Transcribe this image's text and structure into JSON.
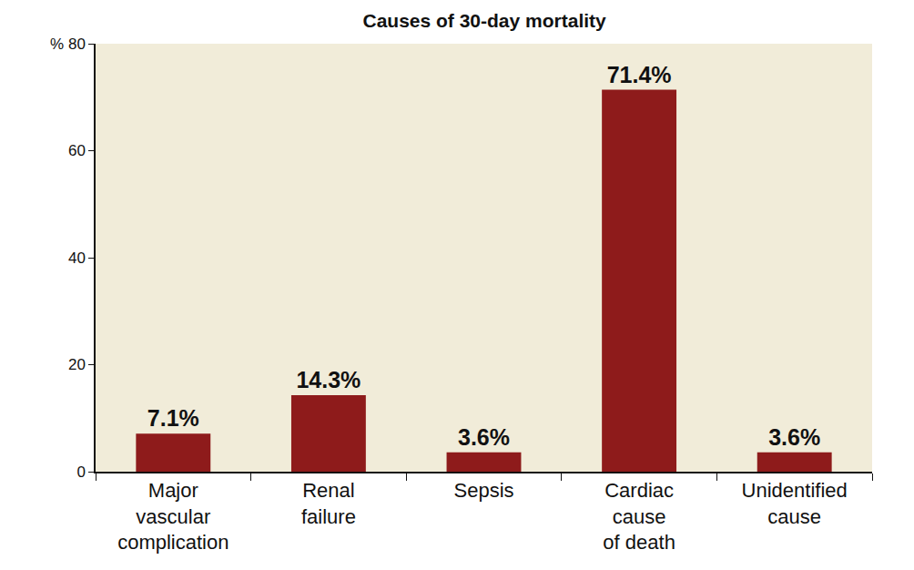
{
  "chart_data": {
    "type": "bar",
    "title": "Causes of 30-day mortality",
    "categories": [
      "Major\nvascular\ncomplication",
      "Renal\nfailure",
      "Sepsis",
      "Cardiac\ncause\nof death",
      "Unidentified\ncause"
    ],
    "values": [
      7.1,
      14.3,
      3.6,
      71.4,
      3.6
    ],
    "value_labels": [
      "7.1%",
      "14.3%",
      "3.6%",
      "71.4%",
      "3.6%"
    ],
    "data_labels": true,
    "color": "#8e1b1b",
    "ylim": [
      0,
      80
    ],
    "yticks": [
      0,
      20,
      40,
      60,
      {
        "value": 80,
        "label": "% 80"
      }
    ],
    "grid": false
  }
}
